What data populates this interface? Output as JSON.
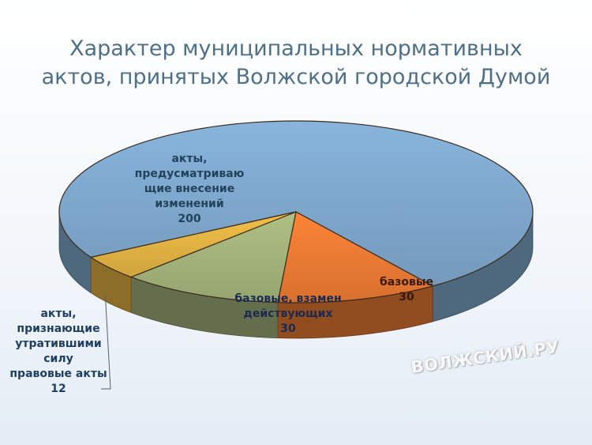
{
  "title": {
    "line1": "Характер муниципальных нормативных",
    "line2": "актов, принятых Волжской городской Думой"
  },
  "watermark": "ВОЛЖСКИЙ.РУ",
  "chart_data": {
    "type": "pie",
    "title": "Характер муниципальных нормативных актов, принятых Волжской городской Думой",
    "slices": [
      {
        "label_lines": [
          "акты,",
          "предусматриваю",
          "щие внесение",
          "изменений"
        ],
        "value_text": "200",
        "value": 200,
        "color": "#7ea7cc"
      },
      {
        "label_lines": [
          "базовые"
        ],
        "value_text": "30",
        "value": 30,
        "color": "#ea7a33"
      },
      {
        "label_lines": [
          "базовые, взамен",
          "действующих"
        ],
        "value_text": "30",
        "value": 30,
        "color": "#a3b27a"
      },
      {
        "label_lines": [
          "акты,",
          "признающие",
          "утратившими",
          "силу",
          "правовые акты"
        ],
        "value_text": "12",
        "value": 12,
        "color": "#e1b243"
      }
    ]
  }
}
